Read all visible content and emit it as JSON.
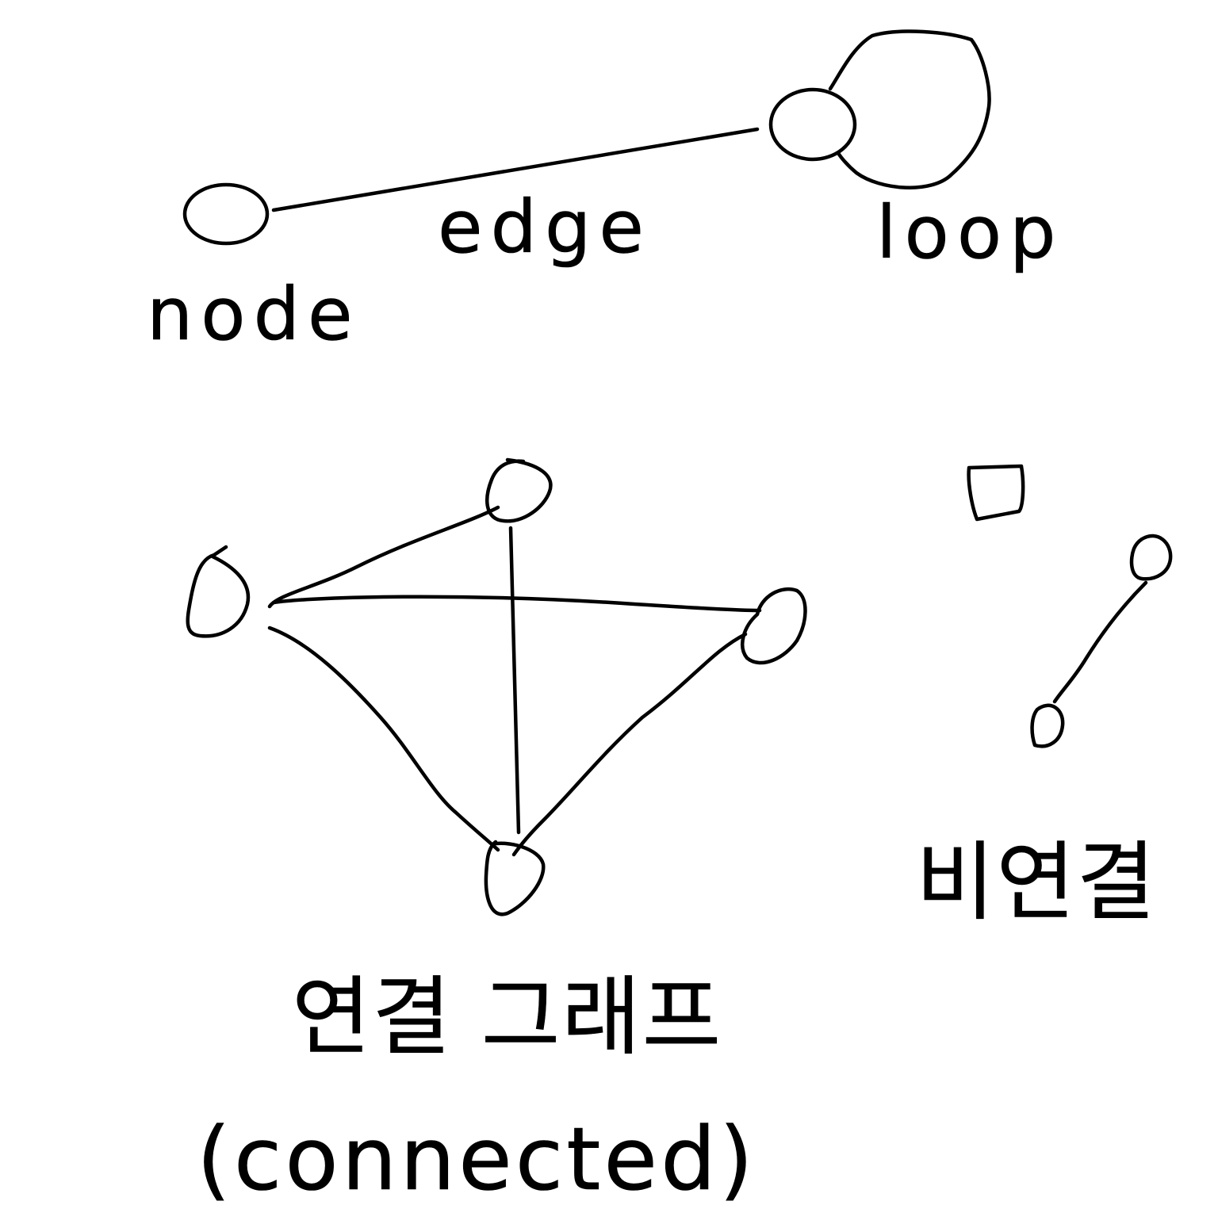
{
  "labels": {
    "node": "node",
    "edge": "edge",
    "loop": "loop",
    "connected_graph_ko": "연결 그래프",
    "connected_graph_en": "(connected)",
    "disconnected_ko": "비연결"
  },
  "colors": {
    "ink": "#000000",
    "paper": "#ffffff"
  }
}
